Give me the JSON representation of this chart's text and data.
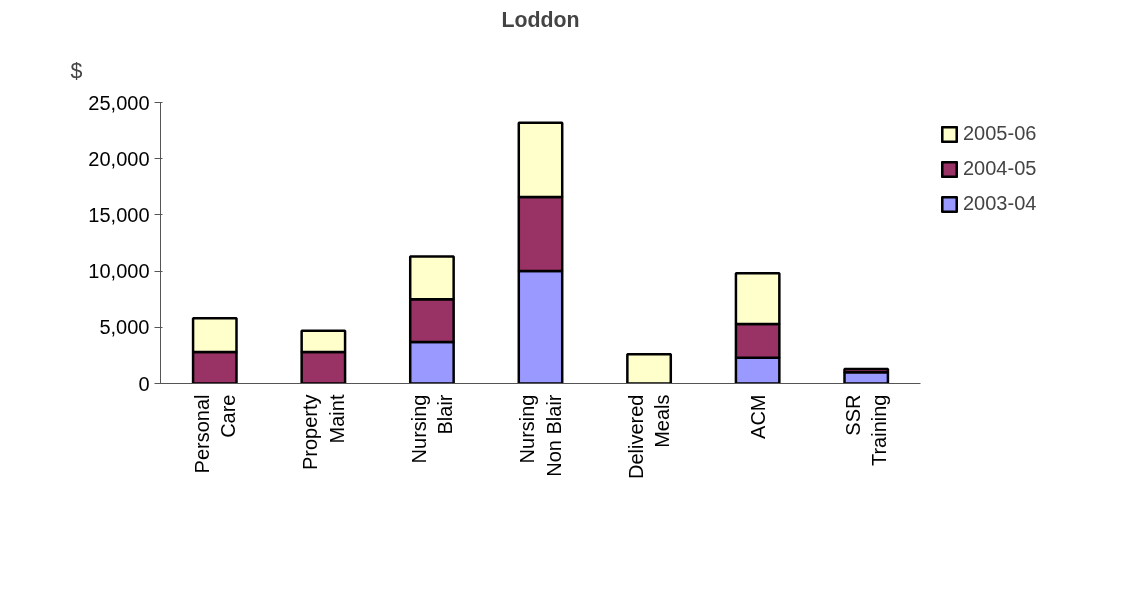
{
  "chart_data": {
    "type": "bar",
    "title": "Loddon",
    "ylabel": "$",
    "stacked": true,
    "categories": [
      "Personal\nCare",
      "Property\nMaint",
      "Nursing\nBlair",
      "Nursing\nNon Blair",
      "Delivered\nMeals",
      "ACM",
      "SSR\nTraining"
    ],
    "series": [
      {
        "name": "2003-04",
        "color": "#9999ff",
        "values": [
          null,
          null,
          3700,
          10000,
          null,
          2300,
          1000
        ]
      },
      {
        "name": "2004-05",
        "color": "#993366",
        "values": [
          2800,
          2800,
          3800,
          6600,
          null,
          3000,
          300
        ]
      },
      {
        "name": "2005-06",
        "color": "#ffffcc",
        "values": [
          3000,
          1900,
          3800,
          6600,
          2600,
          4500,
          null
        ]
      }
    ],
    "ylim": [
      0,
      25000
    ],
    "yticks": [
      {
        "value": 0,
        "label": "0"
      },
      {
        "value": 5000,
        "label": "5,000"
      },
      {
        "value": 10000,
        "label": "10,000"
      },
      {
        "value": 15000,
        "label": "15,000"
      },
      {
        "value": 20000,
        "label": "20,000"
      },
      {
        "value": 25000,
        "label": "25,000"
      }
    ],
    "grid": false,
    "legend": "right"
  }
}
